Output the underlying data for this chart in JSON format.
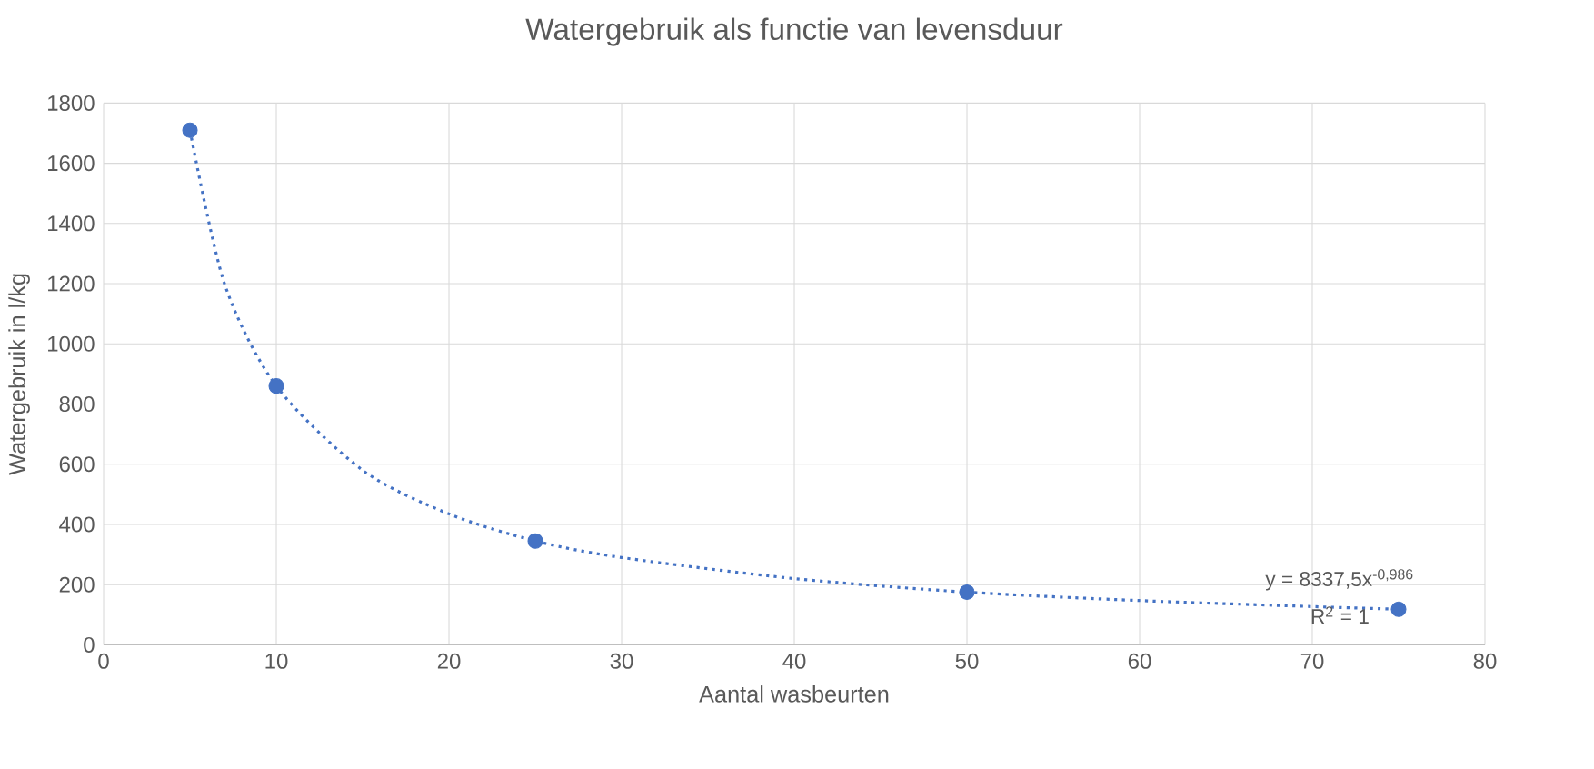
{
  "chart_data": {
    "type": "scatter",
    "title": "Watergebruik als functie van levensduur",
    "xlabel": "Aantal wasbeurten",
    "ylabel": "Watergebruik in l/kg",
    "xlim": [
      0,
      80
    ],
    "xticks": [
      0,
      10,
      20,
      30,
      40,
      50,
      60,
      70,
      80
    ],
    "ylim": [
      0,
      1800
    ],
    "yticks": [
      0,
      200,
      400,
      600,
      800,
      1000,
      1200,
      1400,
      1600,
      1800
    ],
    "grid": true,
    "series": [
      {
        "type": "line",
        "x": [
          5,
          7,
          10,
          15,
          20,
          25,
          30,
          40,
          50,
          60,
          70,
          75
        ],
        "values": [
          1710,
          1200,
          860,
          580,
          435,
          345,
          290,
          220,
          175,
          147,
          127,
          118
        ],
        "color": "#4472c4",
        "line_style": "dotted",
        "marker": "none"
      },
      {
        "x": [
          5,
          10,
          25,
          50,
          75
        ],
        "values": [
          1710,
          860,
          345,
          175,
          118
        ],
        "color": "#4472c4",
        "marker": "circle"
      }
    ],
    "annotations": [
      "y = 8337,5x$^{-0,986}$",
      "R$^{2}$ = 1"
    ]
  }
}
